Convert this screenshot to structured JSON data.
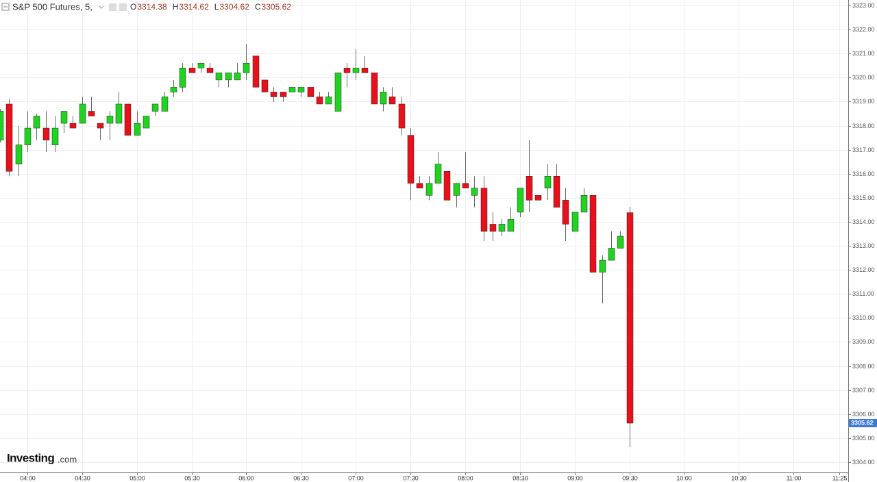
{
  "chart_data": {
    "type": "candlestick",
    "title": "S&P 500 Futures, 5,",
    "ohlc_labels": [
      "O",
      "H",
      "L",
      "C"
    ],
    "watermark": [
      "Investing",
      ".com"
    ],
    "up_color": "#1fd31f",
    "down_color": "#e8101a",
    "grid": true,
    "x": [
      "03:45",
      "03:50",
      "03:55",
      "04:00",
      "04:05",
      "04:10",
      "04:15",
      "04:20",
      "04:25",
      "04:30",
      "04:35",
      "04:40",
      "04:45",
      "04:50",
      "04:55",
      "05:00",
      "05:05",
      "05:10",
      "05:15",
      "05:20",
      "05:25",
      "05:30",
      "05:35",
      "05:40",
      "05:45",
      "05:50",
      "05:55",
      "06:00",
      "06:05",
      "06:10",
      "06:15",
      "06:20",
      "06:25",
      "06:30",
      "06:35",
      "06:40",
      "06:45",
      "06:50",
      "06:55",
      "07:00",
      "07:05",
      "07:10",
      "07:15",
      "07:20",
      "07:25",
      "07:30",
      "07:35",
      "07:40",
      "07:45",
      "07:50",
      "07:55",
      "08:00",
      "08:05",
      "08:10",
      "08:15",
      "08:20",
      "08:25",
      "08:30",
      "08:35",
      "08:40",
      "08:45",
      "08:50",
      "08:55",
      "09:00",
      "09:05",
      "09:10",
      "09:15",
      "09:20",
      "09:25",
      "09:30"
    ],
    "open": [
      3317.4,
      3318.9,
      3316.4,
      3317.2,
      3317.9,
      3317.9,
      3317.2,
      3318.1,
      3318.1,
      3318.1,
      3318.6,
      3318.1,
      3318.1,
      3318.1,
      3318.9,
      3317.6,
      3317.9,
      3318.6,
      3318.6,
      3319.4,
      3319.6,
      3320.4,
      3320.4,
      3320.4,
      3319.9,
      3319.9,
      3319.9,
      3320.2,
      3320.9,
      3319.9,
      3319.4,
      3319.4,
      3319.4,
      3319.4,
      3319.6,
      3319.2,
      3318.9,
      3318.6,
      3320.4,
      3320.2,
      3320.4,
      3320.2,
      3318.9,
      3319.2,
      3318.9,
      3317.6,
      3315.6,
      3315.1,
      3315.6,
      3316.1,
      3315.1,
      3315.6,
      3315.1,
      3315.4,
      3313.9,
      3313.6,
      3313.6,
      3314.4,
      3315.9,
      3315.1,
      3315.4,
      3315.9,
      3314.9,
      3313.6,
      3314.4,
      3315.1,
      3311.9,
      3312.4,
      3312.9,
      3314.38
    ],
    "high": [
      3318.7,
      3319.1,
      3318.0,
      3318.6,
      3318.5,
      3318.6,
      3318.4,
      3318.6,
      3318.4,
      3319.2,
      3319.2,
      3318.1,
      3318.6,
      3319.4,
      3318.9,
      3318.6,
      3318.4,
      3318.9,
      3319.4,
      3319.9,
      3320.6,
      3320.6,
      3320.6,
      3320.6,
      3320.2,
      3320.2,
      3320.6,
      3321.4,
      3320.9,
      3319.9,
      3319.6,
      3319.4,
      3319.6,
      3319.6,
      3319.6,
      3319.4,
      3319.4,
      3320.2,
      3320.6,
      3321.2,
      3320.9,
      3320.2,
      3319.6,
      3319.6,
      3319.2,
      3317.9,
      3315.9,
      3315.9,
      3316.9,
      3316.1,
      3315.6,
      3316.9,
      3315.9,
      3315.9,
      3314.4,
      3314.1,
      3314.6,
      3315.4,
      3317.4,
      3315.1,
      3316.4,
      3316.4,
      3315.4,
      3314.4,
      3315.4,
      3315.1,
      3312.6,
      3313.6,
      3313.6,
      3314.62
    ],
    "low": [
      3317.3,
      3315.9,
      3315.9,
      3316.9,
      3317.4,
      3316.9,
      3316.9,
      3317.7,
      3317.9,
      3318.1,
      3318.4,
      3317.4,
      3317.4,
      3318.1,
      3317.6,
      3317.6,
      3317.9,
      3318.4,
      3318.6,
      3319.2,
      3319.4,
      3320.2,
      3320.2,
      3320.2,
      3319.6,
      3319.6,
      3319.9,
      3319.9,
      3319.6,
      3319.4,
      3319.0,
      3319.0,
      3319.4,
      3319.2,
      3319.2,
      3318.9,
      3318.9,
      3318.6,
      3319.6,
      3319.9,
      3320.2,
      3318.9,
      3318.6,
      3318.9,
      3317.6,
      3314.9,
      3315.4,
      3314.9,
      3315.6,
      3314.9,
      3314.6,
      3315.4,
      3314.6,
      3313.2,
      3313.2,
      3313.4,
      3313.6,
      3314.2,
      3314.4,
      3314.9,
      3314.9,
      3314.6,
      3313.2,
      3313.6,
      3314.4,
      3311.9,
      3310.6,
      3312.4,
      3312.9,
      3304.62
    ],
    "close": [
      3318.6,
      3316.1,
      3317.2,
      3317.9,
      3318.4,
      3317.4,
      3317.9,
      3318.6,
      3317.9,
      3318.9,
      3318.4,
      3317.9,
      3318.4,
      3318.9,
      3317.6,
      3318.1,
      3318.4,
      3318.9,
      3319.2,
      3319.6,
      3320.4,
      3320.2,
      3320.6,
      3320.2,
      3320.2,
      3320.2,
      3320.2,
      3320.6,
      3319.6,
      3319.4,
      3319.2,
      3319.2,
      3319.6,
      3319.6,
      3319.2,
      3318.9,
      3319.2,
      3320.2,
      3320.2,
      3320.4,
      3320.2,
      3318.9,
      3319.4,
      3318.9,
      3317.9,
      3315.6,
      3315.4,
      3315.6,
      3316.4,
      3314.9,
      3315.6,
      3315.4,
      3315.4,
      3313.6,
      3313.6,
      3313.9,
      3314.1,
      3315.4,
      3314.9,
      3314.9,
      3315.9,
      3314.6,
      3313.9,
      3314.4,
      3315.1,
      3311.9,
      3312.4,
      3312.9,
      3313.4,
      3305.62
    ],
    "xlim": [
      "03:45",
      "11:30"
    ],
    "xticks": [
      "04:00",
      "04:30",
      "05:00",
      "05:30",
      "06:00",
      "06:30",
      "07:00",
      "07:30",
      "08:00",
      "08:30",
      "09:00",
      "09:30",
      "10:00",
      "10:30",
      "11:00",
      "11:25"
    ],
    "ylim": [
      3303.57,
      3323.23
    ],
    "yticks": [
      {
        "value": 3304,
        "label": "3304.00"
      },
      {
        "value": 3305,
        "label": "3305.00"
      },
      {
        "value": 3306,
        "label": "3306.00"
      },
      {
        "value": 3307,
        "label": "3307.00"
      },
      {
        "value": 3308,
        "label": "3308.00"
      },
      {
        "value": 3309,
        "label": "3309.00"
      },
      {
        "value": 3310,
        "label": "3310.00"
      },
      {
        "value": 3311,
        "label": "3311.00"
      },
      {
        "value": 3312,
        "label": "3312.00"
      },
      {
        "value": 3313,
        "label": "3313.00"
      },
      {
        "value": 3314,
        "label": "3314.00"
      },
      {
        "value": 3315,
        "label": "3315.00"
      },
      {
        "value": 3316,
        "label": "3316.00"
      },
      {
        "value": 3317,
        "label": "3317.00"
      },
      {
        "value": 3318,
        "label": "3318.00"
      },
      {
        "value": 3319,
        "label": "3319.00"
      },
      {
        "value": 3320,
        "label": "3320.00"
      },
      {
        "value": 3321,
        "label": "3321.00"
      },
      {
        "value": 3322,
        "label": "3322.00"
      },
      {
        "value": 3323,
        "label": "3323.00"
      }
    ]
  }
}
